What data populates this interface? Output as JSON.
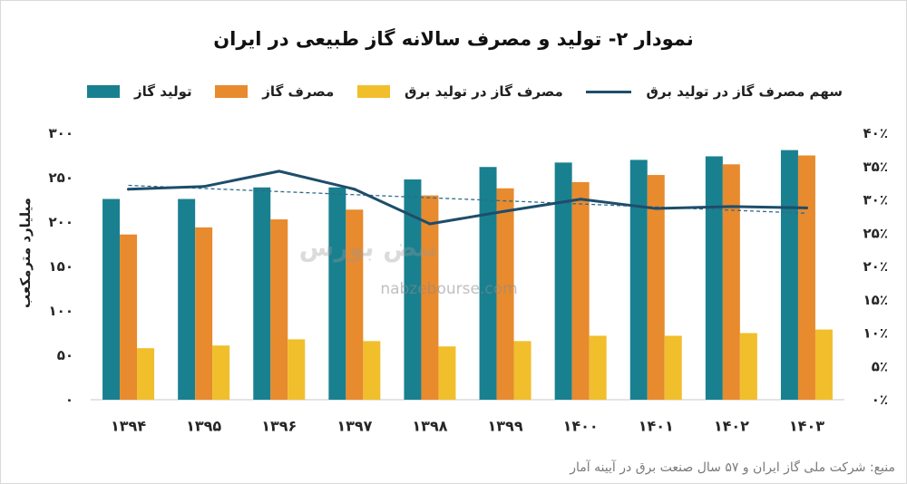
{
  "chart_data": {
    "type": "bar",
    "title": "نمودار ۲- تولید و مصرف سالانه گاز طبیعی در ایران",
    "categories": [
      "۱۳۹۴",
      "۱۳۹۵",
      "۱۳۹۶",
      "۱۳۹۷",
      "۱۳۹۸",
      "۱۳۹۹",
      "۱۴۰۰",
      "۱۴۰۱",
      "۱۴۰۲",
      "۱۴۰۳"
    ],
    "ylabel": "میلیارد مترمکعب",
    "ylim": [
      0,
      300
    ],
    "yticks": [
      "۰",
      "۵۰",
      "۱۰۰",
      "۱۵۰",
      "۲۰۰",
      "۲۵۰",
      "۳۰۰"
    ],
    "y2lim": [
      0,
      40
    ],
    "y2ticks": [
      "۰٪",
      "۵٪",
      "۱۰٪",
      "۱۵٪",
      "۲۰٪",
      "۲۵٪",
      "۳۰٪",
      "۳۵٪",
      "۴۰٪"
    ],
    "series": [
      {
        "name": "تولید گاز",
        "type": "bar",
        "axis": "left",
        "color": "#19808f",
        "values": [
          226,
          226,
          239,
          239,
          248,
          262,
          267,
          270,
          274,
          281
        ]
      },
      {
        "name": "مصرف گاز",
        "type": "bar",
        "axis": "left",
        "color": "#e88a2e",
        "values": [
          186,
          194,
          203,
          214,
          230,
          238,
          245,
          253,
          265,
          275
        ]
      },
      {
        "name": "مصرف گاز در تولید برق",
        "type": "bar",
        "axis": "left",
        "color": "#f1be2c",
        "values": [
          58,
          61,
          68,
          66,
          60,
          66,
          72,
          72,
          75,
          79
        ]
      },
      {
        "name": "سهم مصرف گاز در تولید برق",
        "type": "line",
        "axis": "right",
        "color": "#1e4d6b",
        "values": [
          31.6,
          32.0,
          34.3,
          31.6,
          26.4,
          28.3,
          30.1,
          28.7,
          29.0,
          28.8
        ],
        "trendline": "linear"
      }
    ],
    "legend": "top",
    "grid": false
  },
  "source": "منبع: شرکت ملی گاز ایران و ۵۷ سال صنعت برق در آیینه آمار",
  "watermark": {
    "brand": "نبض بورس",
    "url": "nabzebourse.com"
  }
}
